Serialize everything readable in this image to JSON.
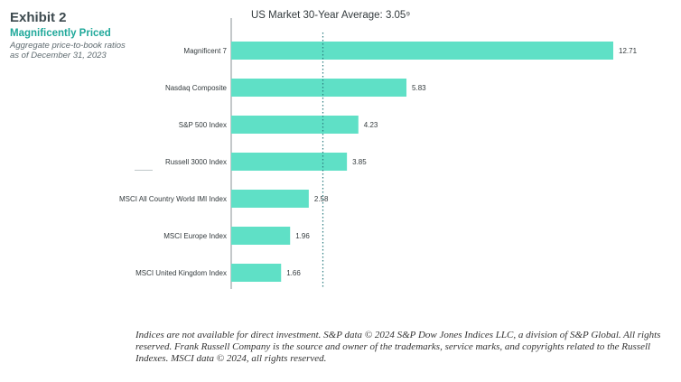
{
  "exhibit": {
    "label": "Exhibit 2",
    "title": "Magnificently Priced",
    "subtitle": "Aggregate price-to-book ratios as of December 31, 2023"
  },
  "chart_data": {
    "type": "bar",
    "orientation": "horizontal",
    "categories": [
      "Magnificent 7",
      "Nasdaq Composite",
      "S&P 500 Index",
      "Russell 3000 Index",
      "MSCI All Country World IMI Index",
      "MSCI Europe Index",
      "MSCI United Kingdom Index"
    ],
    "values": [
      12.71,
      5.83,
      4.23,
      3.85,
      2.58,
      1.96,
      1.66
    ],
    "value_labels": [
      "12.71",
      "5.83",
      "4.23",
      "3.85",
      "2.58",
      "1.96",
      "1.66"
    ],
    "reference_line": {
      "value": 3.05,
      "label": "US Market 30-Year Average: 3.05⁹",
      "style": "dotted"
    },
    "xlim": [
      0,
      12.71
    ],
    "grid": false,
    "bar_color": "#5fe0c6",
    "reference_line_color": "#2c7d80"
  },
  "footnote": "Indices are not available for direct investment. S&P data © 2024 S&P Dow Jones Indices LLC, a division of S&P Global. All rights reserved. Frank Russell Company is the source and owner of the trademarks, service marks, and copyrights related to the Russell Indexes. MSCI data © 2024, all rights reserved."
}
